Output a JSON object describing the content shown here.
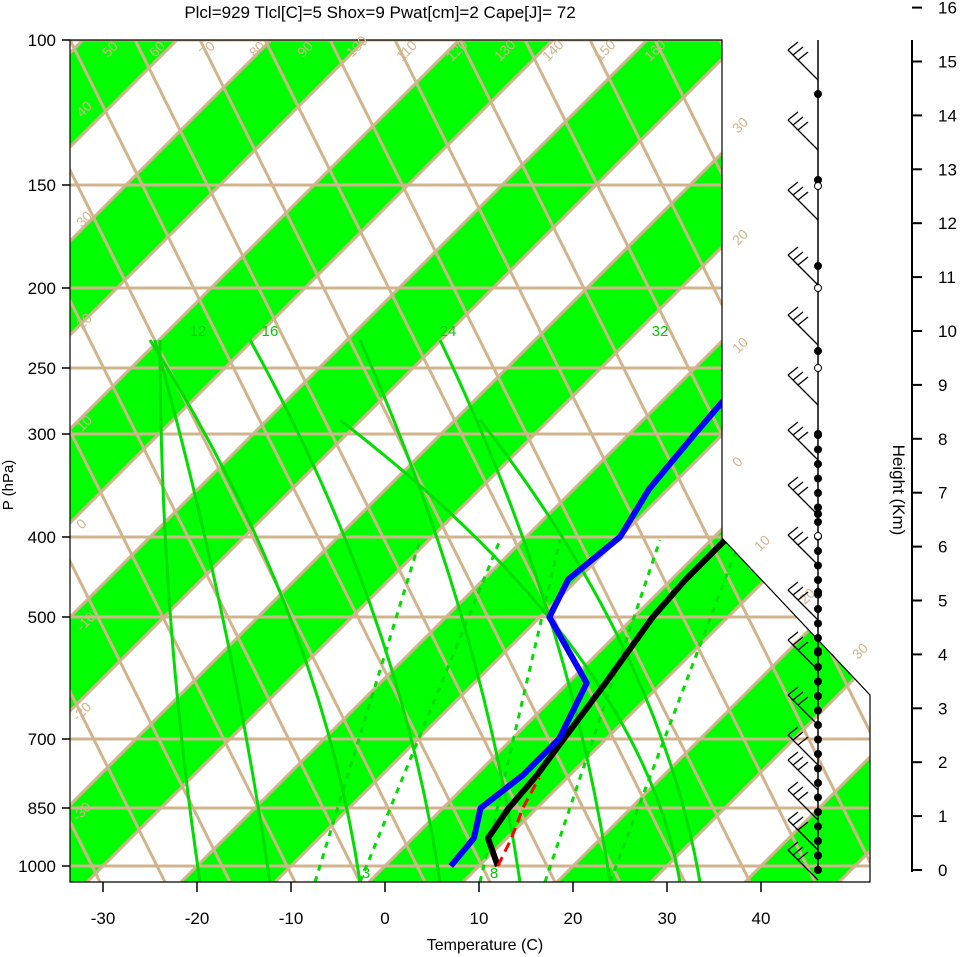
{
  "chart_data": {
    "type": "line",
    "title": "Plcl=929 Tlcl[C]=5 Shox=9 Pwat[cm]=2 Cape[J]= 72",
    "xlabel": "Temperature (C)",
    "ylabel": "P (hPa)",
    "y2label": "Height (Km)",
    "xlim": [
      -34,
      52
    ],
    "ylim": [
      1050,
      100
    ],
    "x_ticks": [
      "-30",
      "-20",
      "-10",
      "0",
      "10",
      "20",
      "30",
      "40"
    ],
    "p_ticks": [
      "100",
      "150",
      "200",
      "250",
      "300",
      "400",
      "500",
      "700",
      "850",
      "1000"
    ],
    "height_ticks": [
      "0",
      "1",
      "2",
      "3",
      "4",
      "5",
      "6",
      "7",
      "8",
      "9",
      "10",
      "11",
      "12",
      "13",
      "14",
      "15",
      "16"
    ],
    "isotherm_labels": [
      "50",
      "60",
      "70",
      "80",
      "90",
      "100",
      "110",
      "120",
      "130",
      "140",
      "150",
      "160",
      "40",
      "30",
      "20",
      "10",
      "0",
      "-10",
      "-20",
      "-30",
      "30",
      "20",
      "10",
      "0",
      "10",
      "20",
      "30"
    ],
    "mixing_ratio_labels": [
      "12",
      "16",
      "24",
      "32",
      "3",
      "8"
    ],
    "colors": {
      "title": "#a0522d",
      "isobar": "#d2b48c",
      "band": "#00ff00",
      "temperature": "#000000",
      "dewpoint": "#0000ff",
      "parcel": "#ff0000",
      "wet_adiabat": "#00dd00"
    },
    "series": [
      {
        "name": "Temperature",
        "p": [
          1000,
          925,
          850,
          775,
          700,
          600,
          500,
          450,
          400,
          350,
          300,
          250,
          225,
          200,
          175,
          150,
          135,
          125,
          110
        ],
        "t": [
          12,
          8,
          7,
          6.5,
          5.5,
          4,
          2,
          1.5,
          1.5,
          1,
          -1,
          -3.5,
          -4,
          -3,
          -1.5,
          1.5,
          4,
          6.5,
          9
        ]
      },
      {
        "name": "Dewpoint",
        "p": [
          1000,
          925,
          850,
          775,
          700,
          600,
          500,
          450,
          400,
          350,
          300,
          250,
          225,
          200,
          180,
          160,
          150,
          135,
          115
        ],
        "t": [
          7,
          6.5,
          4,
          5,
          5,
          2,
          -9,
          -11,
          -10,
          -12,
          -13,
          -14,
          -16,
          -18,
          -19,
          -23.5,
          -24,
          -22,
          -16
        ]
      },
      {
        "name": "Parcel",
        "p": [
          1000,
          925,
          850,
          780
        ],
        "t": [
          12,
          10.5,
          8.5,
          7
        ]
      }
    ]
  }
}
